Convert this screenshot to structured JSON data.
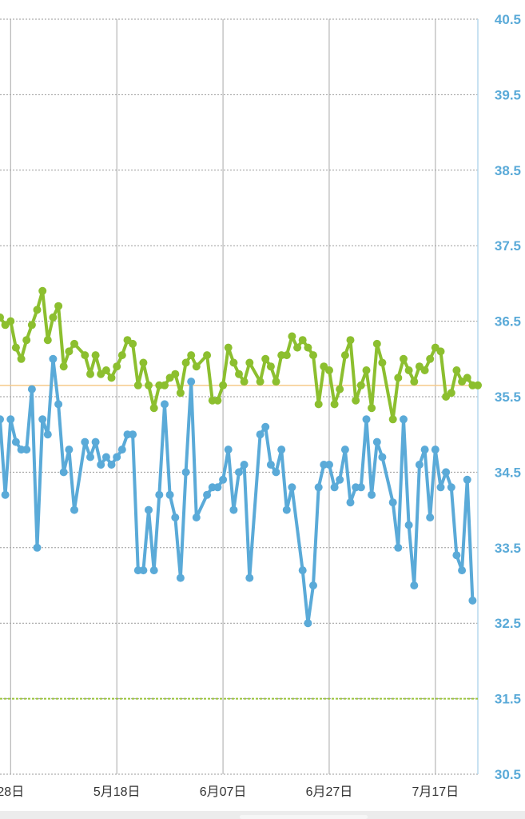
{
  "chart_data": {
    "type": "line",
    "x_start": "2024-04-26",
    "x_end": "2024-07-25",
    "xticks": [
      {
        "date": "2024-04-28",
        "label": "28日"
      },
      {
        "date": "2024-05-18",
        "label": "5月18日"
      },
      {
        "date": "2024-06-07",
        "label": "6月07日"
      },
      {
        "date": "2024-06-27",
        "label": "6月27日"
      },
      {
        "date": "2024-07-17",
        "label": "7月17日"
      }
    ],
    "ylim": [
      30.5,
      40.5
    ],
    "yticks": [
      "40.5",
      "39.5",
      "38.5",
      "37.5",
      "36.5",
      "35.5",
      "34.5",
      "33.5",
      "32.5",
      "31.5",
      "30.5"
    ],
    "grid": true,
    "reference_lines": [
      {
        "value": 35.65,
        "color": "#f5c98a",
        "style": "solid"
      },
      {
        "value": 31.5,
        "color": "#9bc43c",
        "style": "dashed"
      }
    ],
    "series": [
      {
        "color": "#8cbf2f",
        "points": [
          [
            "2024-04-26",
            36.55
          ],
          [
            "2024-04-27",
            36.45
          ],
          [
            "2024-04-28",
            36.5
          ],
          [
            "2024-04-29",
            36.15
          ],
          [
            "2024-04-30",
            36.0
          ],
          [
            "2024-05-01",
            36.25
          ],
          [
            "2024-05-02",
            36.45
          ],
          [
            "2024-05-03",
            36.65
          ],
          [
            "2024-05-04",
            36.9
          ],
          [
            "2024-05-05",
            36.25
          ],
          [
            "2024-05-06",
            36.55
          ],
          [
            "2024-05-07",
            36.7
          ],
          [
            "2024-05-08",
            35.9
          ],
          [
            "2024-05-09",
            36.1
          ],
          [
            "2024-05-10",
            36.2
          ],
          [
            "2024-05-12",
            36.05
          ],
          [
            "2024-05-13",
            35.8
          ],
          [
            "2024-05-14",
            36.05
          ],
          [
            "2024-05-15",
            35.8
          ],
          [
            "2024-05-16",
            35.85
          ],
          [
            "2024-05-17",
            35.75
          ],
          [
            "2024-05-18",
            35.9
          ],
          [
            "2024-05-19",
            36.05
          ],
          [
            "2024-05-20",
            36.25
          ],
          [
            "2024-05-21",
            36.2
          ],
          [
            "2024-05-22",
            35.65
          ],
          [
            "2024-05-23",
            35.95
          ],
          [
            "2024-05-24",
            35.65
          ],
          [
            "2024-05-25",
            35.35
          ],
          [
            "2024-05-26",
            35.65
          ],
          [
            "2024-05-27",
            35.65
          ],
          [
            "2024-05-28",
            35.75
          ],
          [
            "2024-05-29",
            35.8
          ],
          [
            "2024-05-30",
            35.55
          ],
          [
            "2024-05-31",
            35.95
          ],
          [
            "2024-06-01",
            36.05
          ],
          [
            "2024-06-02",
            35.9
          ],
          [
            "2024-06-04",
            36.05
          ],
          [
            "2024-06-05",
            35.45
          ],
          [
            "2024-06-06",
            35.45
          ],
          [
            "2024-06-07",
            35.65
          ],
          [
            "2024-06-08",
            36.15
          ],
          [
            "2024-06-09",
            35.95
          ],
          [
            "2024-06-10",
            35.8
          ],
          [
            "2024-06-11",
            35.7
          ],
          [
            "2024-06-12",
            35.95
          ],
          [
            "2024-06-14",
            35.7
          ],
          [
            "2024-06-15",
            36.0
          ],
          [
            "2024-06-16",
            35.9
          ],
          [
            "2024-06-17",
            35.7
          ],
          [
            "2024-06-18",
            36.05
          ],
          [
            "2024-06-19",
            36.05
          ],
          [
            "2024-06-20",
            36.3
          ],
          [
            "2024-06-21",
            36.15
          ],
          [
            "2024-06-22",
            36.25
          ],
          [
            "2024-06-23",
            36.15
          ],
          [
            "2024-06-24",
            36.05
          ],
          [
            "2024-06-25",
            35.4
          ],
          [
            "2024-06-26",
            35.9
          ],
          [
            "2024-06-27",
            35.85
          ],
          [
            "2024-06-28",
            35.4
          ],
          [
            "2024-06-29",
            35.6
          ],
          [
            "2024-06-30",
            36.05
          ],
          [
            "2024-07-01",
            36.25
          ],
          [
            "2024-07-02",
            35.45
          ],
          [
            "2024-07-03",
            35.65
          ],
          [
            "2024-07-04",
            35.85
          ],
          [
            "2024-07-05",
            35.35
          ],
          [
            "2024-07-06",
            36.2
          ],
          [
            "2024-07-07",
            35.95
          ],
          [
            "2024-07-09",
            35.2
          ],
          [
            "2024-07-10",
            35.75
          ],
          [
            "2024-07-11",
            36.0
          ],
          [
            "2024-07-12",
            35.85
          ],
          [
            "2024-07-13",
            35.7
          ],
          [
            "2024-07-14",
            35.9
          ],
          [
            "2024-07-15",
            35.85
          ],
          [
            "2024-07-16",
            36.0
          ],
          [
            "2024-07-17",
            36.15
          ],
          [
            "2024-07-18",
            36.1
          ],
          [
            "2024-07-19",
            35.5
          ],
          [
            "2024-07-20",
            35.55
          ],
          [
            "2024-07-21",
            35.85
          ],
          [
            "2024-07-22",
            35.7
          ],
          [
            "2024-07-23",
            35.75
          ],
          [
            "2024-07-24",
            35.65
          ],
          [
            "2024-07-25",
            35.65
          ]
        ]
      },
      {
        "color": "#5aaad8",
        "points": [
          [
            "2024-04-26",
            35.2
          ],
          [
            "2024-04-27",
            34.2
          ],
          [
            "2024-04-28",
            35.2
          ],
          [
            "2024-04-29",
            34.9
          ],
          [
            "2024-04-30",
            34.8
          ],
          [
            "2024-05-01",
            34.8
          ],
          [
            "2024-05-02",
            35.6
          ],
          [
            "2024-05-03",
            33.5
          ],
          [
            "2024-05-04",
            35.2
          ],
          [
            "2024-05-05",
            35.0
          ],
          [
            "2024-05-06",
            36.0
          ],
          [
            "2024-05-07",
            35.4
          ],
          [
            "2024-05-08",
            34.5
          ],
          [
            "2024-05-09",
            34.8
          ],
          [
            "2024-05-10",
            34.0
          ],
          [
            "2024-05-12",
            34.9
          ],
          [
            "2024-05-13",
            34.7
          ],
          [
            "2024-05-14",
            34.9
          ],
          [
            "2024-05-15",
            34.6
          ],
          [
            "2024-05-16",
            34.7
          ],
          [
            "2024-05-17",
            34.6
          ],
          [
            "2024-05-18",
            34.7
          ],
          [
            "2024-05-19",
            34.8
          ],
          [
            "2024-05-20",
            35.0
          ],
          [
            "2024-05-21",
            35.0
          ],
          [
            "2024-05-22",
            33.2
          ],
          [
            "2024-05-23",
            33.2
          ],
          [
            "2024-05-24",
            34.0
          ],
          [
            "2024-05-25",
            33.2
          ],
          [
            "2024-05-26",
            34.2
          ],
          [
            "2024-05-27",
            35.4
          ],
          [
            "2024-05-28",
            34.2
          ],
          [
            "2024-05-29",
            33.9
          ],
          [
            "2024-05-30",
            33.1
          ],
          [
            "2024-05-31",
            34.5
          ],
          [
            "2024-06-01",
            35.7
          ],
          [
            "2024-06-02",
            33.9
          ],
          [
            "2024-06-04",
            34.2
          ],
          [
            "2024-06-05",
            34.3
          ],
          [
            "2024-06-06",
            34.3
          ],
          [
            "2024-06-07",
            34.4
          ],
          [
            "2024-06-08",
            34.8
          ],
          [
            "2024-06-09",
            34.0
          ],
          [
            "2024-06-10",
            34.5
          ],
          [
            "2024-06-11",
            34.6
          ],
          [
            "2024-06-12",
            33.1
          ],
          [
            "2024-06-14",
            35.0
          ],
          [
            "2024-06-15",
            35.1
          ],
          [
            "2024-06-16",
            34.6
          ],
          [
            "2024-06-17",
            34.5
          ],
          [
            "2024-06-18",
            34.8
          ],
          [
            "2024-06-19",
            34.0
          ],
          [
            "2024-06-20",
            34.3
          ],
          [
            "2024-06-22",
            33.2
          ],
          [
            "2024-06-23",
            32.5
          ],
          [
            "2024-06-24",
            33.0
          ],
          [
            "2024-06-25",
            34.3
          ],
          [
            "2024-06-26",
            34.6
          ],
          [
            "2024-06-27",
            34.6
          ],
          [
            "2024-06-28",
            34.3
          ],
          [
            "2024-06-29",
            34.4
          ],
          [
            "2024-06-30",
            34.8
          ],
          [
            "2024-07-01",
            34.1
          ],
          [
            "2024-07-02",
            34.3
          ],
          [
            "2024-07-03",
            34.3
          ],
          [
            "2024-07-04",
            35.2
          ],
          [
            "2024-07-05",
            34.2
          ],
          [
            "2024-07-06",
            34.9
          ],
          [
            "2024-07-07",
            34.7
          ],
          [
            "2024-07-09",
            34.1
          ],
          [
            "2024-07-10",
            33.5
          ],
          [
            "2024-07-11",
            35.2
          ],
          [
            "2024-07-12",
            33.8
          ],
          [
            "2024-07-13",
            33.0
          ],
          [
            "2024-07-14",
            34.6
          ],
          [
            "2024-07-15",
            34.8
          ],
          [
            "2024-07-16",
            33.9
          ],
          [
            "2024-07-17",
            34.8
          ],
          [
            "2024-07-18",
            34.3
          ],
          [
            "2024-07-19",
            34.5
          ],
          [
            "2024-07-20",
            34.3
          ],
          [
            "2024-07-21",
            33.4
          ],
          [
            "2024-07-22",
            33.2
          ],
          [
            "2024-07-23",
            34.4
          ],
          [
            "2024-07-24",
            32.8
          ]
        ]
      }
    ]
  },
  "colors": {
    "ytick_text": "#5aaad8",
    "grid": "#9a9a9a",
    "axis_line": "#b5d9ee"
  }
}
